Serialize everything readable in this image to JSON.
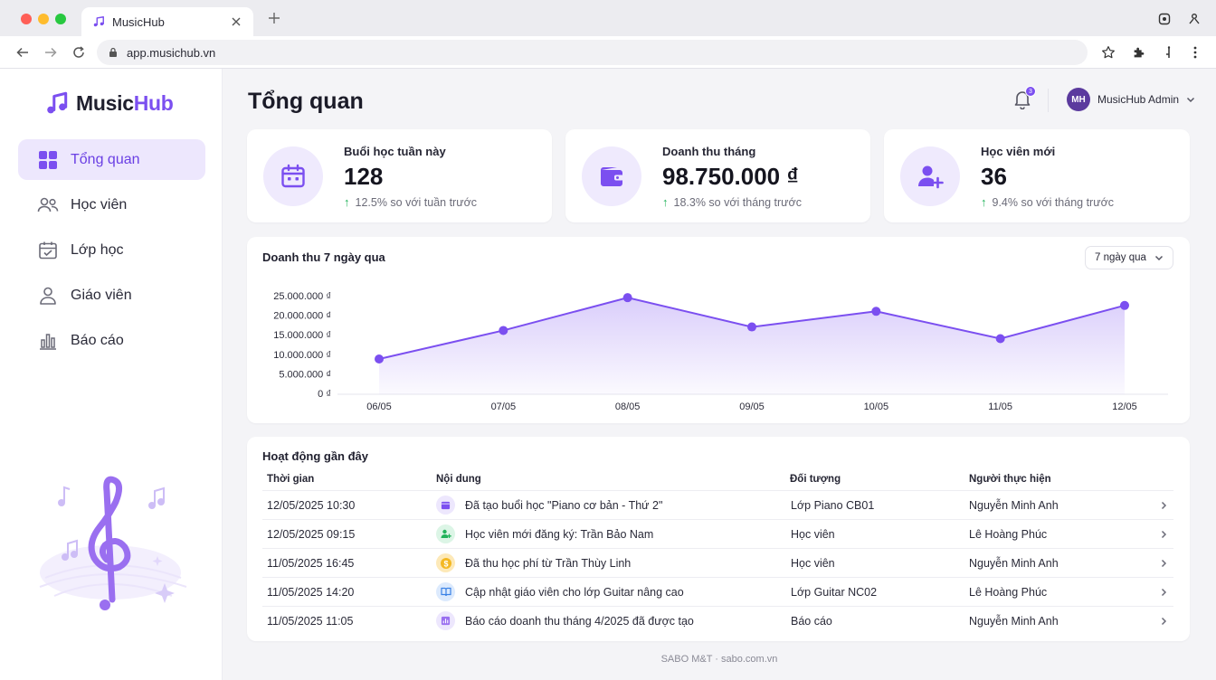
{
  "browser": {
    "tab_title": "MusicHub",
    "url": "app.musichub.vn"
  },
  "sidebar": {
    "logo_main": "Music",
    "logo_accent": "Hub",
    "items": [
      {
        "label": "Tổng quan",
        "icon": "dashboard-grid-icon",
        "active": true
      },
      {
        "label": "Học viên",
        "icon": "users-icon",
        "active": false
      },
      {
        "label": "Lớp học",
        "icon": "calendar-check-icon",
        "active": false
      },
      {
        "label": "Giáo viên",
        "icon": "teacher-icon",
        "active": false
      },
      {
        "label": "Báo cáo",
        "icon": "bar-chart-icon",
        "active": false
      }
    ]
  },
  "header": {
    "title": "Tổng quan",
    "notification_count": "3",
    "avatar_initials": "MH",
    "user_name": "MusicHub Admin"
  },
  "stats": [
    {
      "label": "Buổi học tuần này",
      "value": "128",
      "delta": "12.5% so với tuần trước",
      "icon": "calendar-icon"
    },
    {
      "label": "Doanh thu tháng",
      "value": "98.750.000 ₫",
      "delta": "18.3% so với tháng trước",
      "icon": "wallet-icon"
    },
    {
      "label": "Học viên mới",
      "value": "36",
      "delta": "9.4% so với tháng trước",
      "icon": "user-plus-icon"
    }
  ],
  "colors": {
    "accent": "#7b4ff0",
    "accent_light": "#ede7fd",
    "positive": "#22b35b"
  },
  "chart_data": {
    "type": "area",
    "title": "Doanh thu 7 ngày qua",
    "range_label": "7 ngày qua",
    "categories": [
      "06/05",
      "07/05",
      "08/05",
      "09/05",
      "10/05",
      "11/05",
      "12/05"
    ],
    "values": [
      8800000,
      16100000,
      24500000,
      17000000,
      21000000,
      14000000,
      22500000
    ],
    "ylim": [
      0,
      25000000
    ],
    "yticks": [
      "0 ₫",
      "5.000.000 ₫",
      "10.000.000 ₫",
      "15.000.000 ₫",
      "20.000.000 ₫",
      "25.000.000 ₫"
    ],
    "grid": false
  },
  "activity": {
    "title": "Hoạt động gần đây",
    "columns": [
      "Thời gian",
      "Nội dung",
      "Đối tượng",
      "Người thực hiện"
    ],
    "rows": [
      {
        "time": "12/05/2025 10:30",
        "content": "Đã tạo buổi học \"Piano cơ bản - Thứ 2\"",
        "target": "Lớp Piano CB01",
        "actor": "Nguyễn Minh Anh",
        "icon": "calendar-icon"
      },
      {
        "time": "12/05/2025 09:15",
        "content": "Học viên mới đăng ký: Trần Bảo Nam",
        "target": "Học viên",
        "actor": "Lê Hoàng Phúc",
        "icon": "user-plus-icon"
      },
      {
        "time": "11/05/2025 16:45",
        "content": "Đã thu học phí từ Trần Thùy Linh",
        "target": "Học viên",
        "actor": "Nguyễn Minh Anh",
        "icon": "dollar-icon"
      },
      {
        "time": "11/05/2025 14:20",
        "content": "Cập nhật giáo viên cho lớp Guitar nâng cao",
        "target": "Lớp Guitar NC02",
        "actor": "Lê Hoàng Phúc",
        "icon": "book-icon"
      },
      {
        "time": "11/05/2025 11:05",
        "content": "Báo cáo doanh thu tháng 4/2025 đã được tạo",
        "target": "Báo cáo",
        "actor": "Nguyễn Minh Anh",
        "icon": "report-icon"
      }
    ]
  },
  "footer": "SABO M&T · sabo.com.vn"
}
